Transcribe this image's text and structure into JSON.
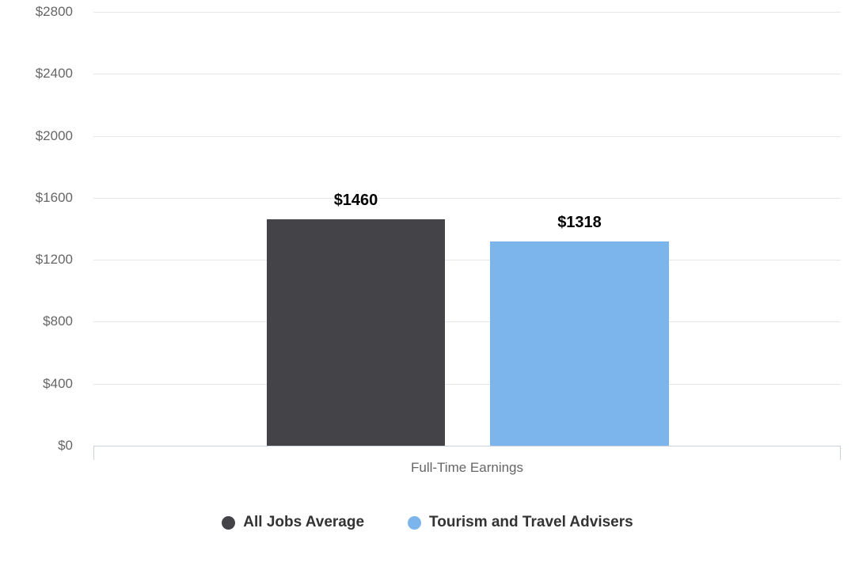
{
  "chart_data": {
    "type": "bar",
    "title": "",
    "xlabel": "Full-Time Earnings",
    "ylabel": "",
    "ylim": [
      0,
      2800
    ],
    "ytick_values": [
      0,
      400,
      800,
      1200,
      1600,
      2000,
      2400,
      2800
    ],
    "ytick_labels": [
      "$0",
      "$400",
      "$800",
      "$1200",
      "$1600",
      "$2000",
      "$2400",
      "$2800"
    ],
    "grid": true,
    "legend_position": "bottom",
    "categories": [
      "Full-Time Earnings"
    ],
    "series": [
      {
        "name": "All Jobs Average",
        "values": [
          1460
        ],
        "data_label": "$1460",
        "color": "#434348"
      },
      {
        "name": "Tourism and Travel Advisers",
        "values": [
          1318
        ],
        "data_label": "$1318",
        "color": "#7cb5ec"
      }
    ]
  },
  "legend": {
    "items": [
      {
        "label": "All Jobs Average",
        "color": "#434348"
      },
      {
        "label": "Tourism and Travel Advisers",
        "color": "#7cb5ec"
      }
    ]
  },
  "colors": {
    "background": "#ffffff",
    "gridline": "#e6e6e6",
    "axis_line": "#ccd2dc",
    "axis_text": "#666666",
    "value_label_text": "#000000",
    "legend_text": "#333333"
  }
}
